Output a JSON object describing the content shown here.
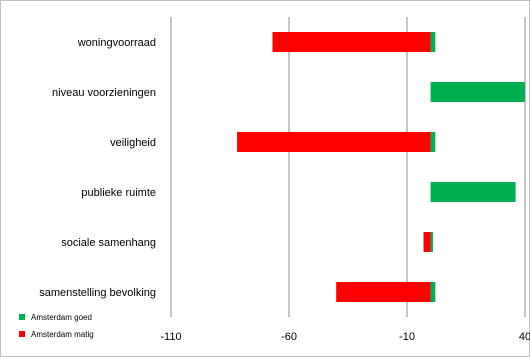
{
  "chart_data": {
    "type": "bar",
    "orientation": "horizontal",
    "categories": [
      "woningvoorraad",
      "niveau voorzieningen",
      "veiligheid",
      "publieke ruimte",
      "sociale samenhang",
      "samenstelling bevolking"
    ],
    "series": [
      {
        "name": "Amsterdam goed",
        "color": "#00b050",
        "values": [
          2,
          40,
          2,
          36,
          1,
          2
        ]
      },
      {
        "name": "Amsterdam matig",
        "color": "#ff0000",
        "values": [
          -67,
          0,
          -82,
          0,
          -3,
          -40
        ]
      }
    ],
    "xlim": [
      -110,
      40
    ],
    "xticks": [
      -110,
      -60,
      -10,
      40
    ],
    "grid": true,
    "legend": "bottom-left",
    "title": "",
    "xlabel": "",
    "ylabel": ""
  }
}
